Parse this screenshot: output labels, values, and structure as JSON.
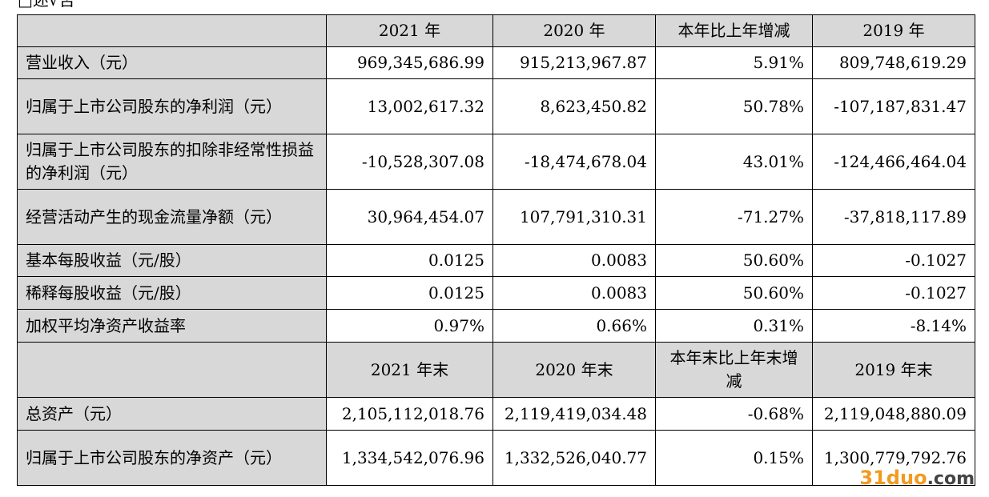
{
  "top_fragment": "□述√否",
  "table": {
    "section1": {
      "headers": [
        "",
        "2021 年",
        "2020 年",
        "本年比上年增减",
        "2019 年"
      ],
      "rows": [
        {
          "label": "营业收入（元）",
          "values": [
            "969,345,686.99",
            "915,213,967.87",
            "5.91%",
            "809,748,619.29"
          ]
        },
        {
          "label": "归属于上市公司股东的净利润（元）",
          "values": [
            "13,002,617.32",
            "8,623,450.82",
            "50.78%",
            "-107,187,831.47"
          ]
        },
        {
          "label": "归属于上市公司股东的扣除非经常性损益的净利润（元）",
          "values": [
            "-10,528,307.08",
            "-18,474,678.04",
            "43.01%",
            "-124,466,464.04"
          ]
        },
        {
          "label": "经营活动产生的现金流量净额（元）",
          "values": [
            "30,964,454.07",
            "107,791,310.31",
            "-71.27%",
            "-37,818,117.89"
          ]
        },
        {
          "label": "基本每股收益（元/股）",
          "values": [
            "0.0125",
            "0.0083",
            "50.60%",
            "-0.1027"
          ]
        },
        {
          "label": "稀释每股收益（元/股）",
          "values": [
            "0.0125",
            "0.0083",
            "50.60%",
            "-0.1027"
          ]
        },
        {
          "label": "加权平均净资产收益率",
          "values": [
            "0.97%",
            "0.66%",
            "0.31%",
            "-8.14%"
          ]
        }
      ]
    },
    "section2": {
      "headers": [
        "",
        "2021 年末",
        "2020 年末",
        "本年末比上年末增减",
        "2019 年末"
      ],
      "rows": [
        {
          "label": "总资产（元）",
          "values": [
            "2,105,112,018.76",
            "2,119,419,034.48",
            "-0.68%",
            "2,119,048,880.09"
          ]
        },
        {
          "label": "归属于上市公司股东的净资产（元）",
          "values": [
            "1,334,542,076.96",
            "1,332,526,040.77",
            "0.15%",
            "1,300,779,792.76"
          ]
        }
      ]
    }
  },
  "watermark": {
    "part1": "31",
    "part2": "duo",
    "part3": ".com"
  }
}
